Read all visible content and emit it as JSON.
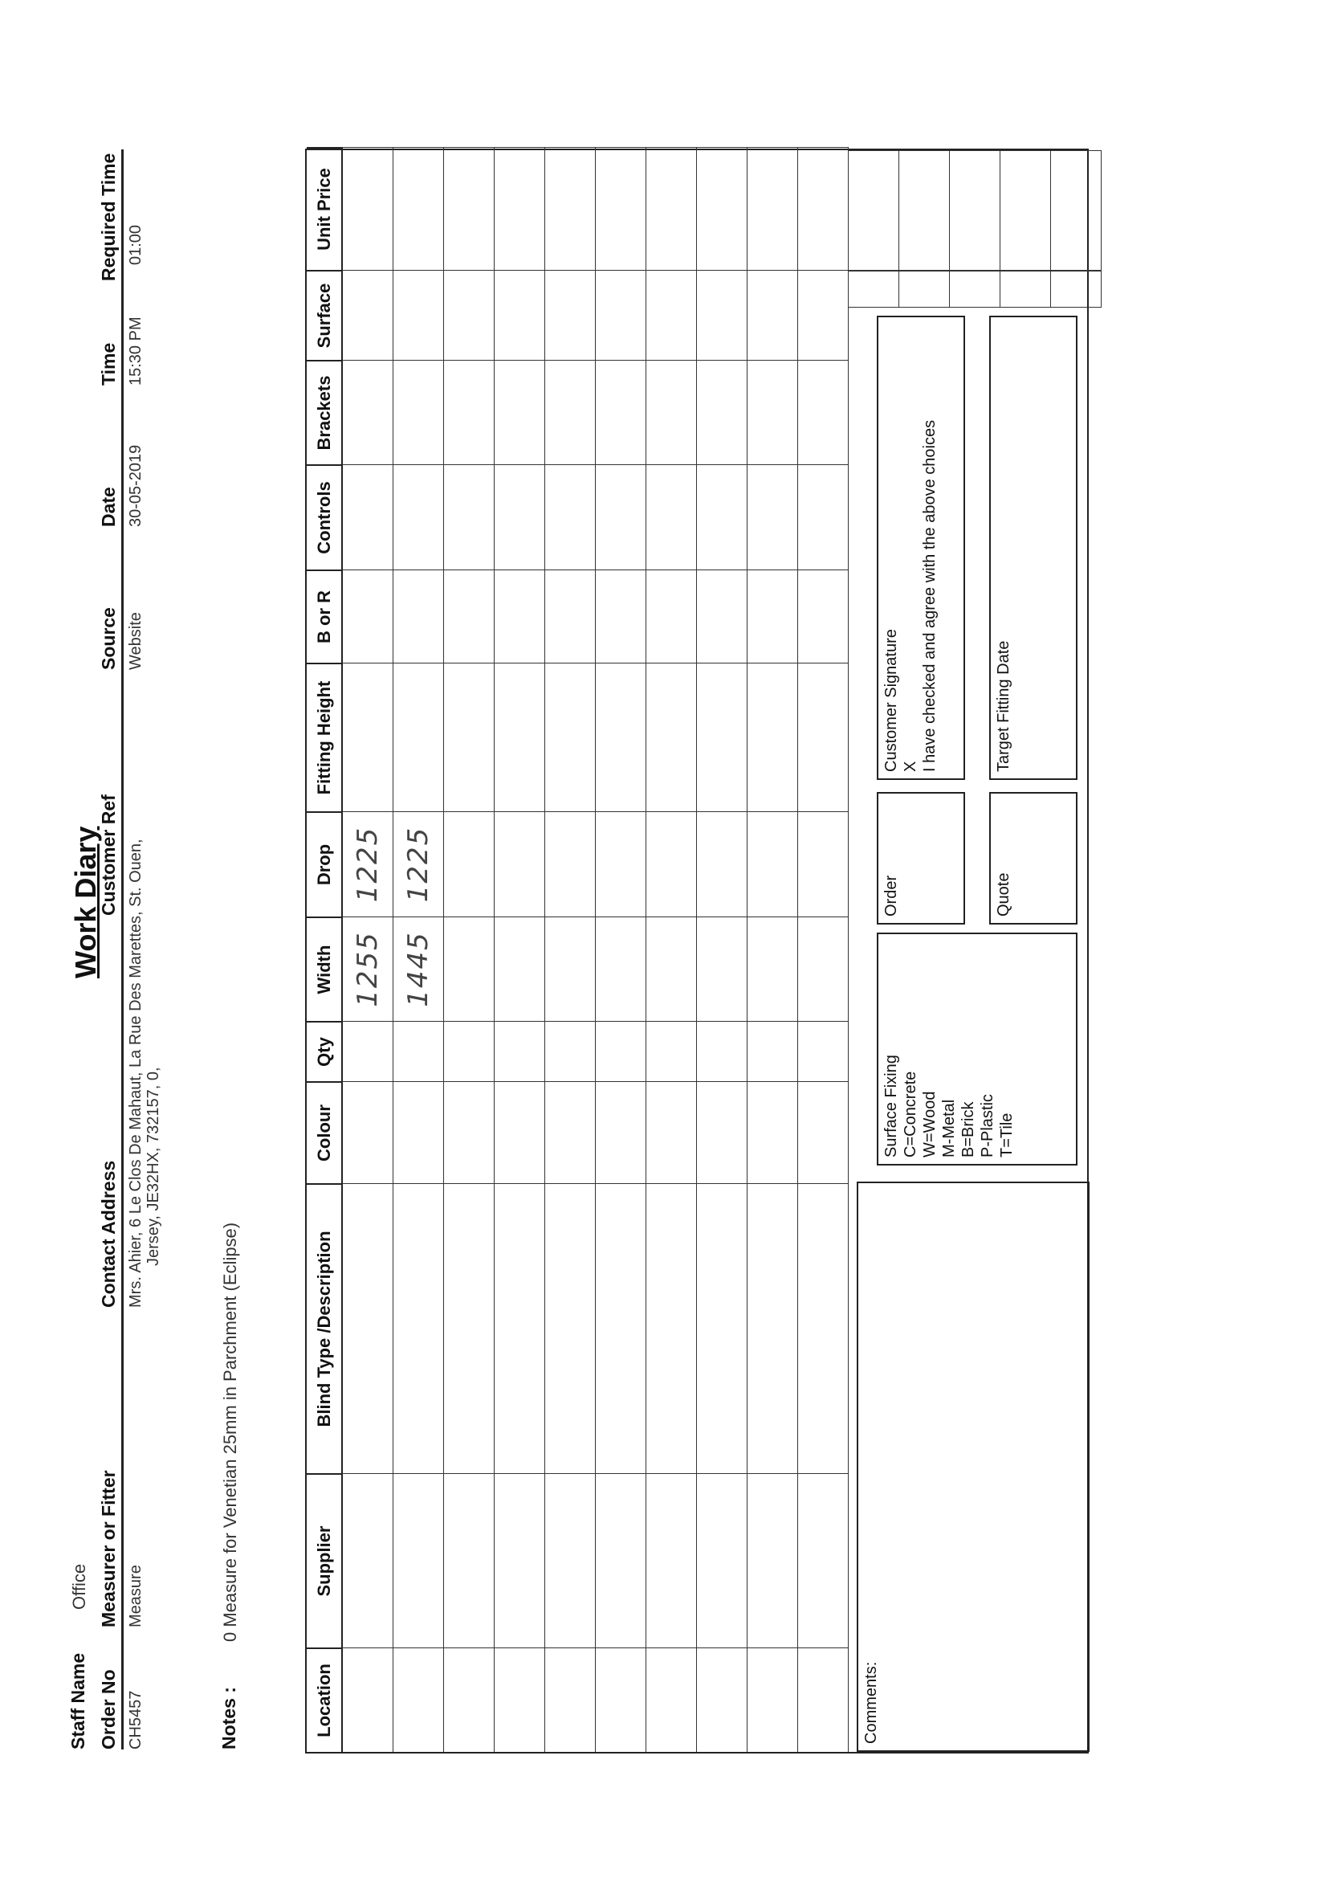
{
  "title": "Work Diary",
  "staff": {
    "label": "Staff Name",
    "value": "Office"
  },
  "fields": {
    "order_no": {
      "label": "Order No",
      "value": "CH5457"
    },
    "measurer": {
      "label": "Measurer or Fitter",
      "value": "Measure"
    },
    "address": {
      "label": "Contact Address",
      "line1": "Mrs. Ahier, 6 Le Clos De Mahaut, La Rue Des Marettes, St. Ouen,",
      "line2": "Jersey, JE32HX, 732157, 0,"
    },
    "customer_ref": {
      "label": "Customer Ref",
      "value": ""
    },
    "source": {
      "label": "Source",
      "value": "Website"
    },
    "date": {
      "label": "Date",
      "value": "30-05-2019"
    },
    "time": {
      "label": "Time",
      "value": "15:30 PM"
    },
    "required_time": {
      "label": "Required Time",
      "value": "01:00"
    }
  },
  "notes": {
    "label": "Notes :",
    "value": "0 Measure for Venetian 25mm in Parchment (Eclipse)"
  },
  "table": {
    "columns": [
      "Location",
      "Supplier",
      "Blind Type /Description",
      "Colour",
      "Qty",
      "Width",
      "Drop",
      "Fitting Height",
      "B or R",
      "Controls",
      "Brackets",
      "Surface",
      "Unit Price"
    ],
    "rows": [
      [
        "",
        "",
        "",
        "",
        "",
        "1255",
        "1225",
        "",
        "",
        "",
        "",
        "",
        ""
      ],
      [
        "",
        "",
        "",
        "",
        "",
        "1445",
        "1225",
        "",
        "",
        "",
        "",
        "",
        ""
      ],
      [
        "",
        "",
        "",
        "",
        "",
        "",
        "",
        "",
        "",
        "",
        "",
        "",
        ""
      ],
      [
        "",
        "",
        "",
        "",
        "",
        "",
        "",
        "",
        "",
        "",
        "",
        "",
        ""
      ],
      [
        "",
        "",
        "",
        "",
        "",
        "",
        "",
        "",
        "",
        "",
        "",
        "",
        ""
      ],
      [
        "",
        "",
        "",
        "",
        "",
        "",
        "",
        "",
        "",
        "",
        "",
        "",
        ""
      ],
      [
        "",
        "",
        "",
        "",
        "",
        "",
        "",
        "",
        "",
        "",
        "",
        "",
        ""
      ],
      [
        "",
        "",
        "",
        "",
        "",
        "",
        "",
        "",
        "",
        "",
        "",
        "",
        ""
      ],
      [
        "",
        "",
        "",
        "",
        "",
        "",
        "",
        "",
        "",
        "",
        "",
        "",
        ""
      ],
      [
        "",
        "",
        "",
        "",
        "",
        "",
        "",
        "",
        "",
        "",
        "",
        "",
        ""
      ]
    ]
  },
  "footer": {
    "comments": "Comments:",
    "surface_fixing": [
      "Surface Fixing",
      "C=Concrete",
      "W=Wood",
      "M-Metal",
      "B=Brick",
      "P-Plastic",
      "T=Tile"
    ],
    "order": "Order",
    "quote": "Quote",
    "signature": [
      "Customer Signature",
      "X",
      "I have checked and agree with the above choices"
    ],
    "target_fitting_date": "Target Fitting Date"
  }
}
